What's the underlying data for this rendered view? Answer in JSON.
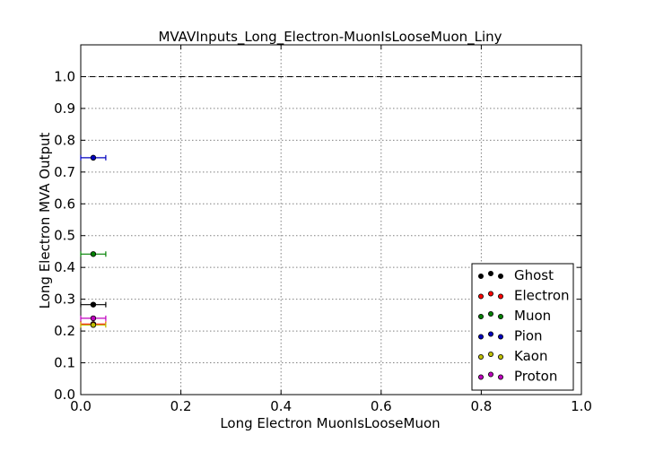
{
  "chart_data": {
    "type": "scatter",
    "title": "MVAVInputs_Long_Electron-MuonIsLooseMuon_Liny",
    "xlabel": "Long Electron MuonIsLooseMuon",
    "ylabel": "Long Electron MVA Output",
    "xlim": [
      0.0,
      1.0
    ],
    "ylim": [
      0.0,
      1.1
    ],
    "x_ticks": [
      "0.0",
      "0.2",
      "0.4",
      "0.6",
      "0.8",
      "1.0"
    ],
    "y_ticks": [
      "0.0",
      "0.1",
      "0.2",
      "0.3",
      "0.4",
      "0.5",
      "0.6",
      "0.7",
      "0.8",
      "0.9",
      "1.0"
    ],
    "grid": true,
    "reference_line_y": 1.0,
    "legend_position": "lower-right",
    "series": [
      {
        "name": "Ghost",
        "color": "#000000",
        "x": 0.025,
        "xerr": 0.025,
        "y": 0.283
      },
      {
        "name": "Electron",
        "color": "#ff0000",
        "x": 0.025,
        "xerr": 0.025,
        "y": 0.222
      },
      {
        "name": "Muon",
        "color": "#008000",
        "x": 0.025,
        "xerr": 0.025,
        "y": 0.442
      },
      {
        "name": "Pion",
        "color": "#0000bf",
        "x": 0.025,
        "xerr": 0.025,
        "y": 0.745
      },
      {
        "name": "Kaon",
        "color": "#bfbf00",
        "x": 0.025,
        "xerr": 0.025,
        "y": 0.219
      },
      {
        "name": "Proton",
        "color": "#bf00bf",
        "x": 0.025,
        "xerr": 0.025,
        "y": 0.24
      }
    ]
  }
}
